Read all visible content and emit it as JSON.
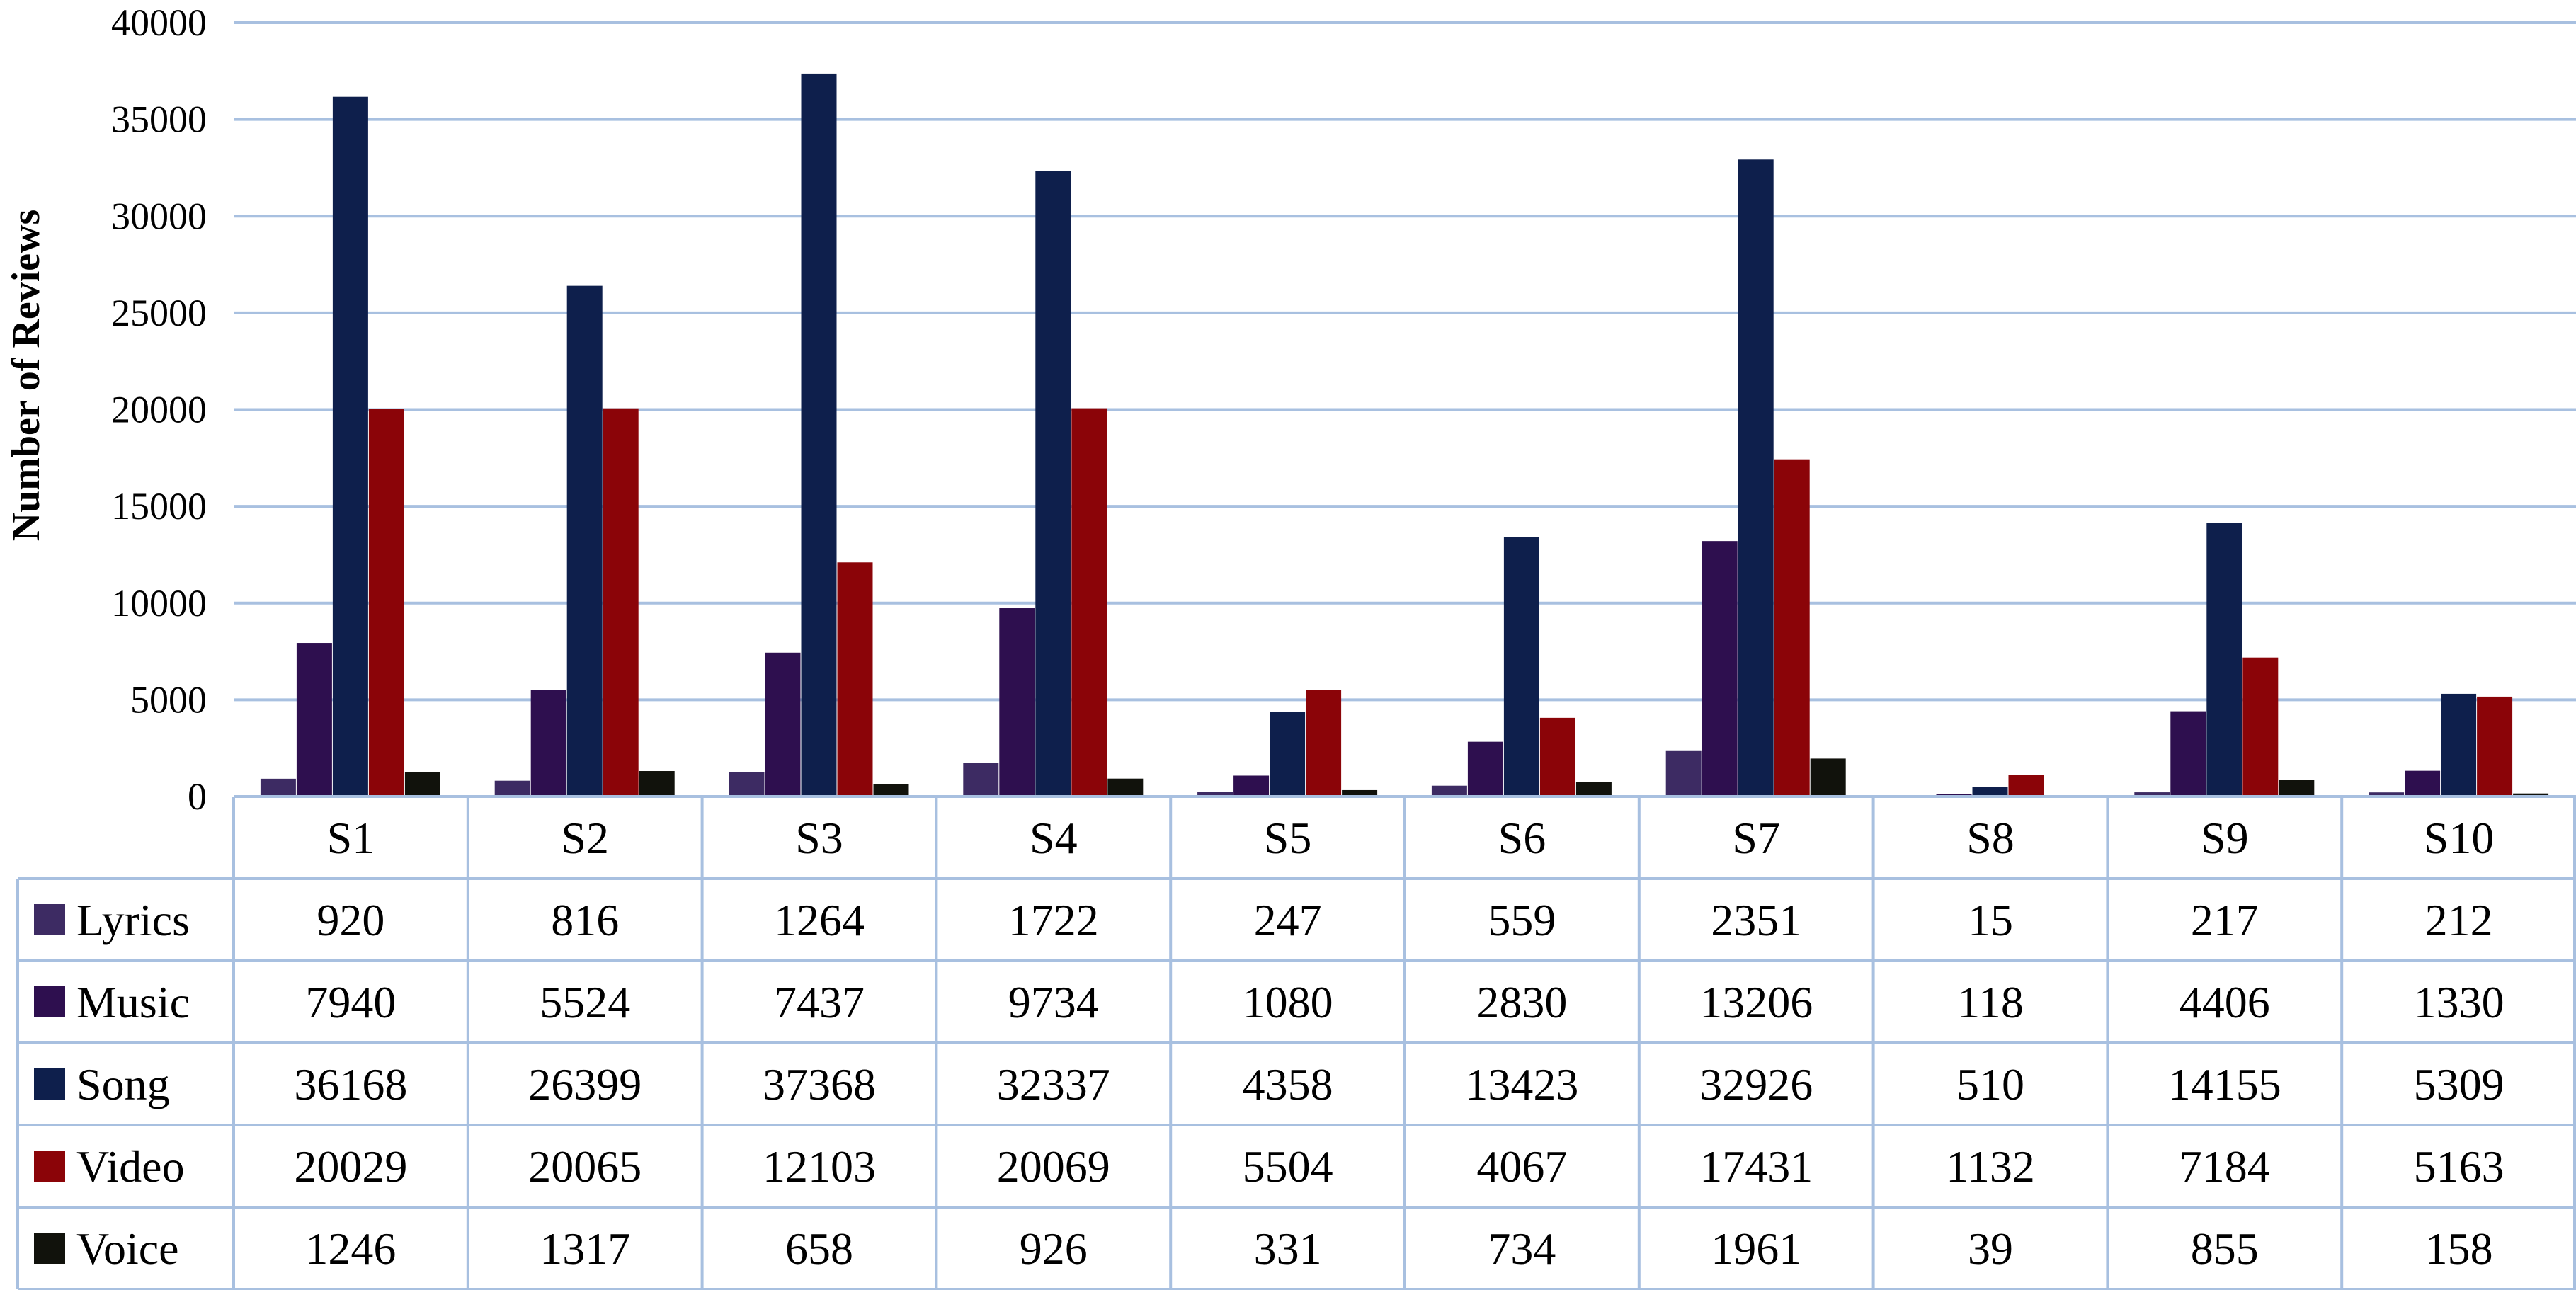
{
  "chart_data": {
    "type": "bar",
    "title": "",
    "xlabel": "",
    "ylabel": "Number of Reviews",
    "ylim": [
      0,
      40000
    ],
    "yticks": [
      0,
      5000,
      10000,
      15000,
      20000,
      25000,
      30000,
      35000,
      40000
    ],
    "grid": true,
    "legend": "left (data table)",
    "categories": [
      "S1",
      "S2",
      "S3",
      "S4",
      "S5",
      "S6",
      "S7",
      "S8",
      "S9",
      "S10"
    ],
    "series": [
      {
        "name": "Lyrics",
        "color": "#3d2b63",
        "values": [
          920,
          816,
          1264,
          1722,
          247,
          559,
          2351,
          15,
          217,
          212
        ]
      },
      {
        "name": "Music",
        "color": "#2e0f4f",
        "values": [
          7940,
          5524,
          7437,
          9734,
          1080,
          2830,
          13206,
          118,
          4406,
          1330
        ]
      },
      {
        "name": "Song",
        "color": "#0e1f4c",
        "values": [
          36168,
          26399,
          37368,
          32337,
          4358,
          13423,
          32926,
          510,
          14155,
          5309
        ]
      },
      {
        "name": "Video",
        "color": "#8b0408",
        "values": [
          20029,
          20065,
          12103,
          20069,
          5504,
          4067,
          17431,
          1132,
          7184,
          5163
        ]
      },
      {
        "name": "Voice",
        "color": "#11120c",
        "values": [
          1246,
          1317,
          658,
          926,
          331,
          734,
          1961,
          39,
          855,
          158
        ]
      }
    ]
  }
}
